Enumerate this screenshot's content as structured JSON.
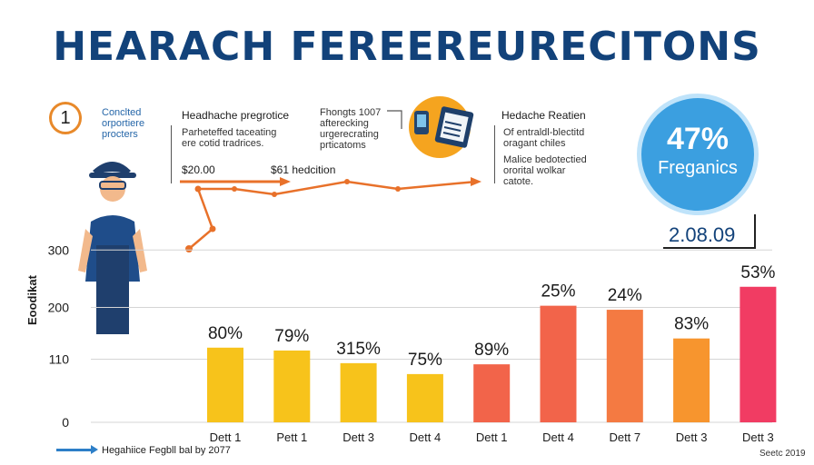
{
  "title": "HEARACH FEREEREURECITONS",
  "panel1": {
    "number": "1",
    "lines": [
      "Conclted",
      "orportiere",
      "procters"
    ]
  },
  "panel2": {
    "heading": "Headhache pregrotice",
    "lines": [
      "Parheteffed taceating",
      "ere cotid tradrices."
    ],
    "value_left": "$20.00",
    "value_right": "$61 hedcition"
  },
  "panel3": {
    "lines": [
      "Fhongts 1007",
      "afterecking",
      "urgerecrating",
      "prticatoms"
    ]
  },
  "panel4": {
    "heading": "Hedache Reatien",
    "lines1": [
      "Of entraldl-blectitd",
      "oragant chiles"
    ],
    "lines2": [
      "Malice bedotectied",
      "ororital wolkar",
      "catote."
    ]
  },
  "highlight": {
    "value": "47%",
    "label": "Freganics"
  },
  "stat_value": "2.08.09",
  "y_axis_label": "Eoodikat",
  "icons": {
    "person": "person-icon",
    "phone_doc": "phone-document-icon"
  },
  "colors": {
    "title": "#12427a",
    "accent_orange": "#e8712a",
    "circle_blue": "#3b9fe0"
  },
  "chart_data": {
    "type": "bar",
    "categories": [
      "Dett 1",
      "Pett 1",
      "Dett 3",
      "Dett 4",
      "Dett 1",
      "Dett 4",
      "Dett 7",
      "Dett 3",
      "Dett 3"
    ],
    "values": [
      130,
      125,
      103,
      84,
      101,
      203,
      196,
      146,
      236
    ],
    "labels": [
      "80%",
      "79%",
      "315%",
      "75%",
      "89%",
      "25%",
      "24%",
      "83%",
      "53%"
    ],
    "bar_colors": [
      "#f7c31b",
      "#f7c31b",
      "#f7c31b",
      "#f7c31b",
      "#f2644a",
      "#f2644a",
      "#f47a42",
      "#f7952e",
      "#f13c63"
    ],
    "yticks": [
      0,
      110,
      200,
      300
    ],
    "ylim": [
      0,
      340
    ],
    "ylabel": "Eoodikat",
    "grid": true
  },
  "footer": "Hegahiice Fegbll bal by 2077",
  "source": "Seetc 2019"
}
